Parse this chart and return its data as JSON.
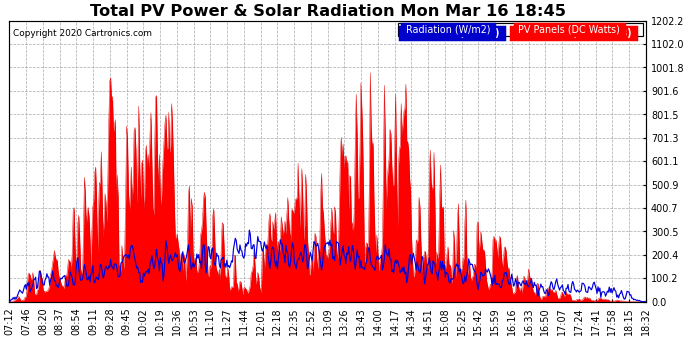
{
  "title": "Total PV Power & Solar Radiation Mon Mar 16 18:45",
  "copyright": "Copyright 2020 Cartronics.com",
  "legend_radiation": "Radiation (W/m2)",
  "legend_pv": "PV Panels (DC Watts)",
  "yticks": [
    0.0,
    100.2,
    200.4,
    300.5,
    400.7,
    500.9,
    601.1,
    701.3,
    801.5,
    901.6,
    1001.8,
    1102.0,
    1202.2
  ],
  "ymax": 1202.2,
  "ymin": 0.0,
  "color_radiation_fill": "#0000cc",
  "color_radiation_line": "#0000dd",
  "color_pv_fill": "#ff0000",
  "color_pv_line": "#dd0000",
  "background_color": "#ffffff",
  "grid_color": "#999999",
  "title_fontsize": 11,
  "tick_fontsize": 6.5,
  "n_points": 680
}
